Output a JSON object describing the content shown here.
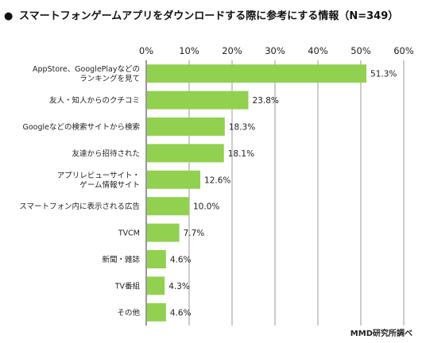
{
  "chart_data": {
    "type": "bar",
    "orientation": "horizontal",
    "title": "スマートフォンゲームアプリをダウンロードする際に参考にする情報（N=349）",
    "title_bullet": "●",
    "categories": [
      [
        "AppStore、GooglePlayなどの",
        "ランキングを見て"
      ],
      [
        "友人・知人からのクチコミ"
      ],
      [
        "Googleなどの検索サイトから検索"
      ],
      [
        "友達から招待された"
      ],
      [
        "アプリレビューサイト・",
        "ゲーム情報サイト"
      ],
      [
        "スマートフォン内に表示される広告"
      ],
      [
        "TVCM"
      ],
      [
        "新聞・雑誌"
      ],
      [
        "TV番組"
      ],
      [
        "その他"
      ]
    ],
    "values": [
      51.3,
      23.8,
      18.3,
      18.1,
      12.6,
      10.0,
      7.7,
      4.6,
      4.3,
      4.6
    ],
    "value_labels": [
      "51.3%",
      "23.8%",
      "18.3%",
      "18.1%",
      "12.6%",
      "10.0%",
      "7.7%",
      "4.6%",
      "4.3%",
      "4.6%"
    ],
    "xlim": [
      0,
      60
    ],
    "xticks": [
      0,
      10,
      20,
      30,
      40,
      50,
      60
    ],
    "xtick_labels": [
      "0%",
      "10%",
      "20%",
      "30%",
      "40%",
      "50%",
      "60%"
    ],
    "grid": true,
    "bar_color": "#92d050",
    "source": "MMD研究所調べ"
  }
}
